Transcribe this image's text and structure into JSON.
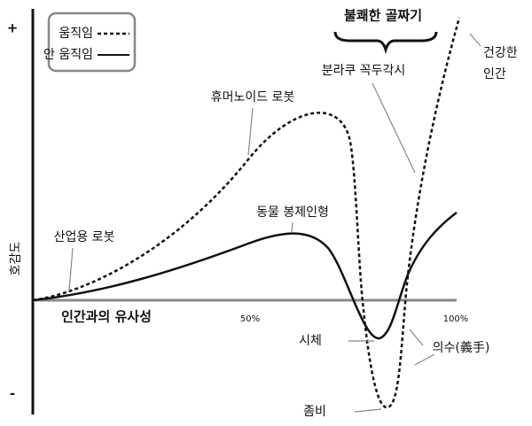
{
  "axes": {
    "plus": "+",
    "minus": "-",
    "y_label": "호감도",
    "x_label": "인간과의 유사성",
    "x_mid": "50%",
    "x_end": "100%"
  },
  "legend": {
    "moving": "움직임",
    "still": "안 움직임"
  },
  "valley": "불쾌한 골짜기",
  "labels": {
    "healthy_line1": "건강한",
    "healthy_line2": "인간",
    "bunraku": "분라쿠 꼭두각시",
    "humanoid": "휴머노이드 로봇",
    "stuffed": "동물 봉제인형",
    "industrial": "산업용 로봇",
    "corpse": "시체",
    "prosthetic": "의수(義手)",
    "zombie": "좀비"
  }
}
